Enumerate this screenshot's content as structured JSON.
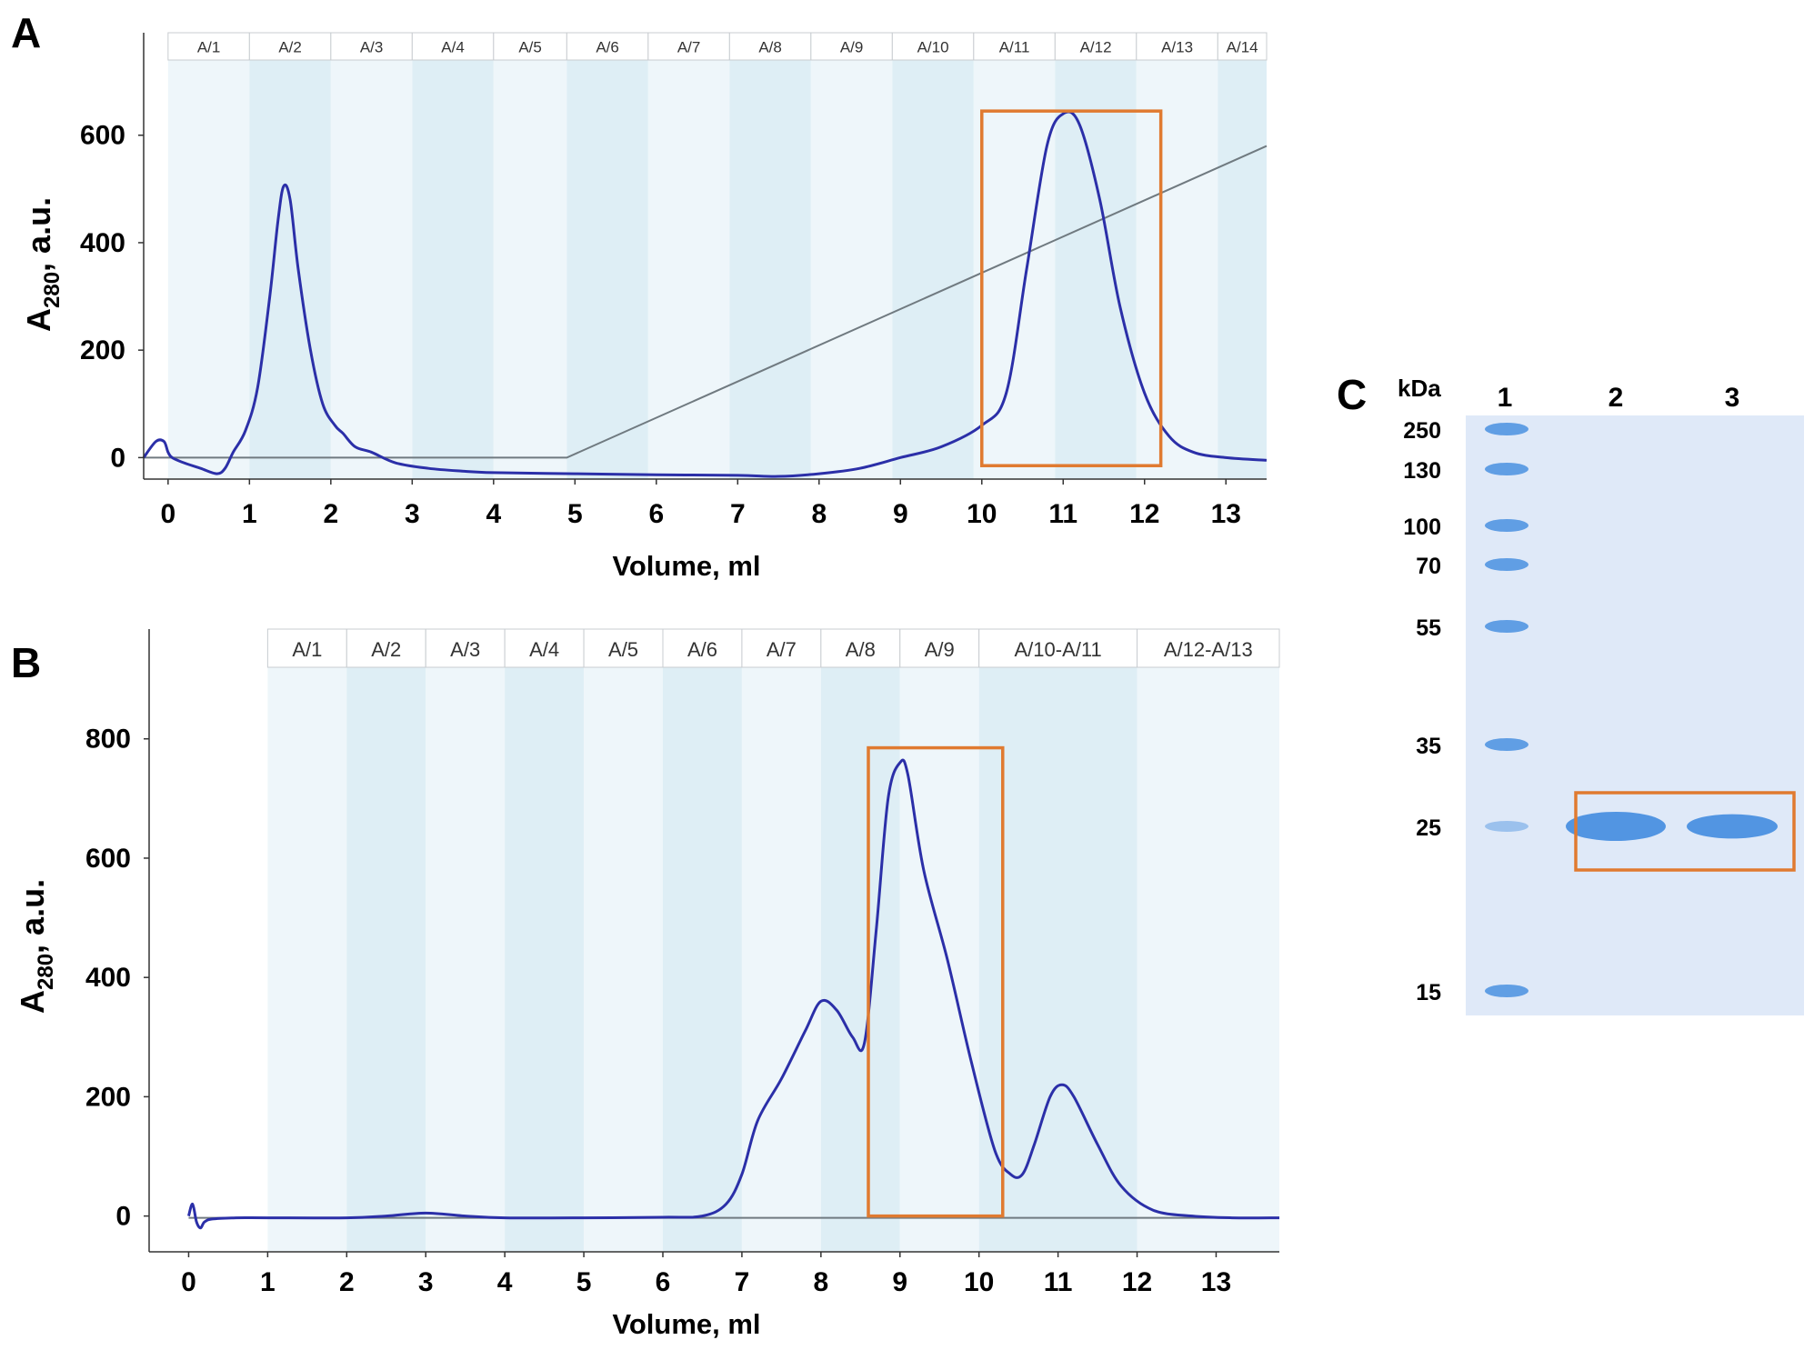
{
  "colors": {
    "trace": "#2b2fa8",
    "baseline": "#707a80",
    "highlight": "#e07a30",
    "band_light": "#eef6fa",
    "band_dark": "#deeef5",
    "gel_bg": "#dfe9f8",
    "gel_band": "#4a90e0"
  },
  "chart_data": [
    {
      "panel": "A",
      "type": "line",
      "ylabel_main": "A",
      "ylabel_sub": "280",
      "ylabel_rest": ", a.u.",
      "xlabel": "Volume, ml",
      "xlim": [
        -0.3,
        13.5
      ],
      "ylim": [
        -40,
        740
      ],
      "x_ticks": [
        "0",
        "1",
        "2",
        "3",
        "4",
        "5",
        "6",
        "7",
        "8",
        "9",
        "10",
        "11",
        "12",
        "13"
      ],
      "y_ticks": [
        "0",
        "200",
        "400",
        "600"
      ],
      "fractions": [
        {
          "label": "A/1",
          "start": 0,
          "end": 1
        },
        {
          "label": "A/2",
          "start": 1,
          "end": 2
        },
        {
          "label": "A/3",
          "start": 2,
          "end": 3
        },
        {
          "label": "A/4",
          "start": 3,
          "end": 4
        },
        {
          "label": "A/5",
          "start": 4,
          "end": 4.9
        },
        {
          "label": "A/6",
          "start": 4.9,
          "end": 5.9
        },
        {
          "label": "A/7",
          "start": 5.9,
          "end": 6.9
        },
        {
          "label": "A/8",
          "start": 6.9,
          "end": 7.9
        },
        {
          "label": "A/9",
          "start": 7.9,
          "end": 8.9
        },
        {
          "label": "A/10",
          "start": 8.9,
          "end": 9.9
        },
        {
          "label": "A/11",
          "start": 9.9,
          "end": 10.9
        },
        {
          "label": "A/12",
          "start": 10.9,
          "end": 11.9
        },
        {
          "label": "A/13",
          "start": 11.9,
          "end": 12.9
        },
        {
          "label": "A/14",
          "start": 12.9,
          "end": 13.9
        }
      ],
      "series": [
        {
          "name": "A280",
          "x": [
            -0.3,
            -0.15,
            -0.05,
            0,
            0.05,
            0.2,
            0.4,
            0.6,
            0.7,
            0.8,
            0.95,
            1.1,
            1.25,
            1.35,
            1.42,
            1.5,
            1.6,
            1.75,
            1.9,
            2.05,
            2.15,
            2.3,
            2.5,
            2.8,
            3.2,
            3.6,
            4,
            5,
            6,
            7,
            7.5,
            8,
            8.5,
            9,
            9.5,
            10,
            10.3,
            10.55,
            10.8,
            11,
            11.2,
            11.45,
            11.7,
            12,
            12.3,
            12.6,
            13,
            13.5
          ],
          "y": [
            0,
            30,
            30,
            10,
            0,
            -10,
            -20,
            -30,
            -20,
            10,
            50,
            130,
            300,
            440,
            505,
            480,
            350,
            200,
            100,
            60,
            45,
            20,
            10,
            -10,
            -20,
            -25,
            -28,
            -30,
            -32,
            -33,
            -35,
            -30,
            -20,
            0,
            20,
            60,
            120,
            350,
            580,
            640,
            620,
            480,
            280,
            120,
            40,
            10,
            0,
            -5
          ]
        },
        {
          "name": "gradient",
          "x": [
            -0.3,
            4.9,
            13.5
          ],
          "y": [
            0,
            0,
            580
          ]
        }
      ],
      "highlight": {
        "x0": 10,
        "x1": 12.2,
        "y0": -15,
        "y1": 645
      }
    },
    {
      "panel": "B",
      "type": "line",
      "ylabel_main": "A",
      "ylabel_sub": "280",
      "ylabel_rest": ", a.u.",
      "xlabel": "Volume, ml",
      "xlim": [
        -0.5,
        13.8
      ],
      "ylim": [
        -60,
        920
      ],
      "x_ticks": [
        "0",
        "1",
        "2",
        "3",
        "4",
        "5",
        "6",
        "7",
        "8",
        "9",
        "10",
        "11",
        "12",
        "13"
      ],
      "y_ticks": [
        "0",
        "200",
        "400",
        "600",
        "800"
      ],
      "fractions": [
        {
          "label": "A/1",
          "start": 1,
          "end": 2
        },
        {
          "label": "A/2",
          "start": 2,
          "end": 3
        },
        {
          "label": "A/3",
          "start": 3,
          "end": 4
        },
        {
          "label": "A/4",
          "start": 4,
          "end": 5
        },
        {
          "label": "A/5",
          "start": 5,
          "end": 6
        },
        {
          "label": "A/6",
          "start": 6,
          "end": 7
        },
        {
          "label": "A/7",
          "start": 7,
          "end": 8
        },
        {
          "label": "A/8",
          "start": 8,
          "end": 9
        },
        {
          "label": "A/9",
          "start": 9,
          "end": 10
        },
        {
          "label": "A/10-A/11",
          "start": 10,
          "end": 12
        },
        {
          "label": "A/12-A/13",
          "start": 12,
          "end": 13.8
        }
      ],
      "series": [
        {
          "name": "A280",
          "x": [
            0,
            0.05,
            0.1,
            0.15,
            0.2,
            0.3,
            0.6,
            1,
            2,
            2.5,
            3,
            3.5,
            4,
            5,
            6,
            6.5,
            6.8,
            7,
            7.2,
            7.5,
            7.8,
            8,
            8.2,
            8.4,
            8.55,
            8.7,
            8.85,
            9,
            9.1,
            9.3,
            9.6,
            9.9,
            10.2,
            10.4,
            10.55,
            10.7,
            10.9,
            11.05,
            11.2,
            11.5,
            11.8,
            12.2,
            12.7,
            13.2,
            13.8
          ],
          "y": [
            0,
            20,
            -10,
            -20,
            -10,
            -5,
            -3,
            -3,
            -3,
            0,
            5,
            0,
            -3,
            -3,
            -2,
            0,
            20,
            70,
            160,
            230,
            310,
            360,
            345,
            300,
            290,
            480,
            700,
            760,
            740,
            580,
            430,
            260,
            110,
            70,
            70,
            120,
            200,
            220,
            200,
            120,
            50,
            10,
            0,
            -3,
            -3
          ]
        },
        {
          "name": "baseline",
          "x": [
            0,
            13.8
          ],
          "y": [
            -3,
            -3
          ]
        }
      ],
      "highlight": {
        "x0": 8.6,
        "x1": 10.3,
        "y0": 0,
        "y1": 785
      }
    },
    {
      "panel": "C",
      "type": "gel",
      "unit_label": "kDa",
      "lanes": [
        "1",
        "2",
        "3"
      ],
      "ladder": [
        {
          "label": "250",
          "kda": 250
        },
        {
          "label": "130",
          "kda": 130
        },
        {
          "label": "100",
          "kda": 100
        },
        {
          "label": "70",
          "kda": 70
        },
        {
          "label": "55",
          "kda": 55
        },
        {
          "label": "35",
          "kda": 35
        },
        {
          "label": "25",
          "kda": 25
        },
        {
          "label": "15",
          "kda": 15
        }
      ],
      "sample_bands": [
        {
          "lane": "2",
          "kda": 25,
          "intensity": 1.0
        },
        {
          "lane": "3",
          "kda": 25,
          "intensity": 0.8
        }
      ],
      "highlight_kda": 25
    }
  ],
  "panel_labels": {
    "a": "A",
    "b": "B",
    "c": "C"
  }
}
